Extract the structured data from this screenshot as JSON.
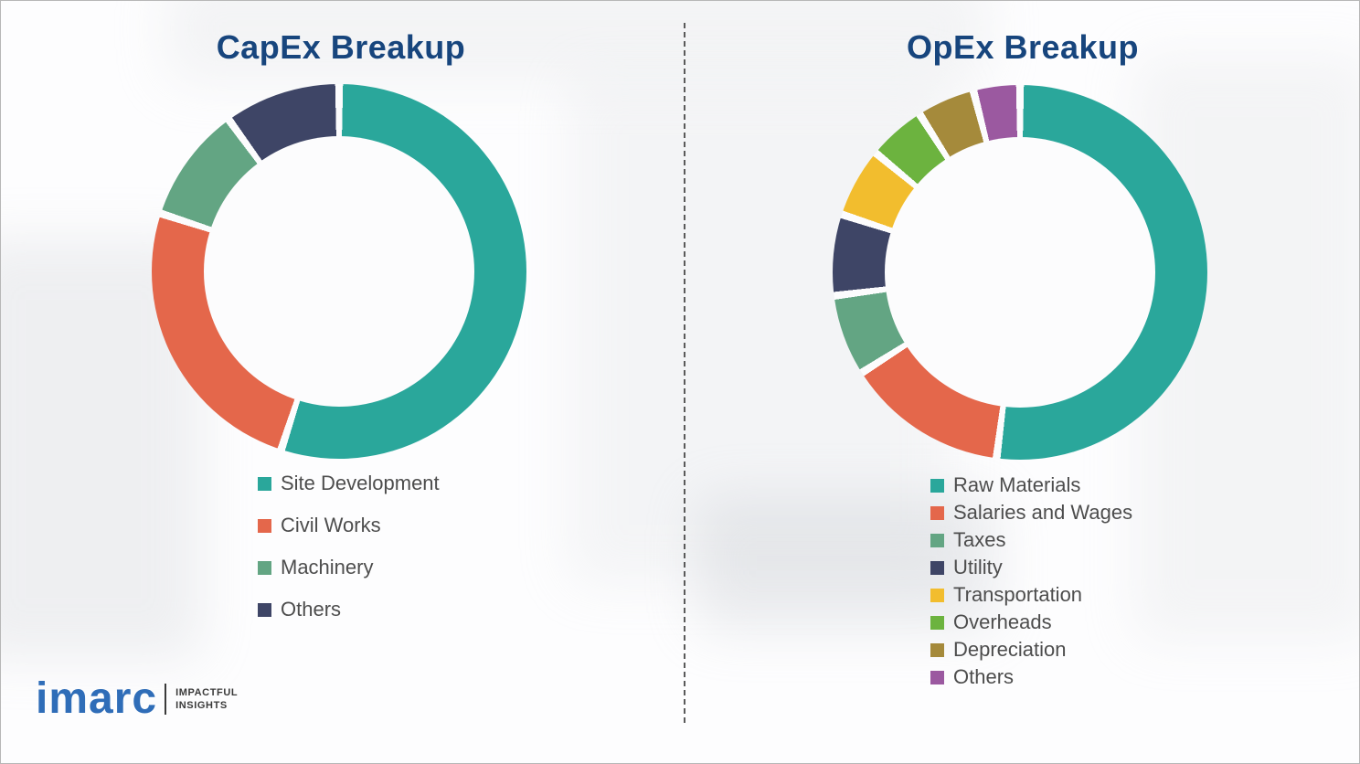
{
  "chart_data": [
    {
      "type": "pie",
      "variant": "donut",
      "title": "CapEx Breakup",
      "labels": [
        "Site Development",
        "Civil Works",
        "Machinery",
        "Others"
      ],
      "values": [
        55,
        25,
        10,
        10
      ],
      "colors": [
        "#2aa79b",
        "#e4674b",
        "#63a583",
        "#3e4566"
      ],
      "legend_position": "bottom-left",
      "start_angle_deg": 0,
      "direction": "clockwise"
    },
    {
      "type": "pie",
      "variant": "donut",
      "title": "OpEx Breakup",
      "labels": [
        "Raw Materials",
        "Salaries and Wages",
        "Taxes",
        "Utility",
        "Transportation",
        "Overheads",
        "Depreciation",
        "Others"
      ],
      "values": [
        52,
        14,
        7,
        7,
        6,
        5,
        5,
        4
      ],
      "colors": [
        "#2aa79b",
        "#e4674b",
        "#63a583",
        "#3e4566",
        "#f2bd2e",
        "#6cb33f",
        "#a58a3b",
        "#9b59a0"
      ],
      "legend_position": "bottom-left",
      "start_angle_deg": 0,
      "direction": "clockwise"
    }
  ],
  "logo": {
    "name": "imarc",
    "tagline_line1": "IMPACTFUL",
    "tagline_line2": "INSIGHTS"
  }
}
